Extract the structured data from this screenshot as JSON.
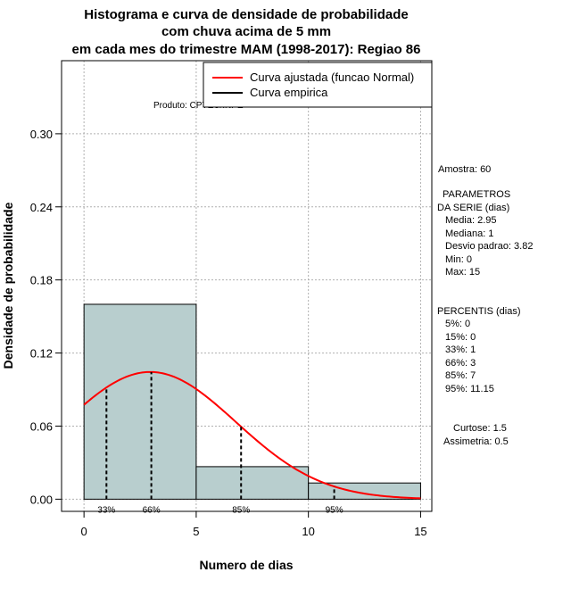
{
  "chart_data": {
    "type": "histogram",
    "title_lines": [
      "Histograma e curva de densidade de probabilidade",
      "com chuva acima de 5 mm",
      "em cada mes do trimestre MAM (1998-2017): Regiao 86"
    ],
    "xlabel": "Numero de dias",
    "ylabel": "Densidade de probabilidade",
    "xlim": [
      -1,
      15.5
    ],
    "ylim": [
      -0.01,
      0.36
    ],
    "x_ticks": [
      0,
      5,
      10,
      15
    ],
    "y_ticks": [
      0.0,
      0.06,
      0.12,
      0.18,
      0.24,
      0.3
    ],
    "y_tick_labels": [
      "0.00",
      "0.06",
      "0.12",
      "0.18",
      "0.24",
      "0.30"
    ],
    "bins": [
      {
        "start": 0,
        "end": 5,
        "density": 0.16
      },
      {
        "start": 5,
        "end": 10,
        "density": 0.0267
      },
      {
        "start": 10,
        "end": 15,
        "density": 0.0133
      }
    ],
    "bar_color": "#b8cece",
    "fit_curve": {
      "distribution": "normal",
      "mean": 2.95,
      "sd": 3.82,
      "color": "#ff0000"
    },
    "percentile_markers": [
      {
        "x": 1,
        "label": "33%"
      },
      {
        "x": 3,
        "label": "66%"
      },
      {
        "x": 7,
        "label": "85%"
      },
      {
        "x": 11.15,
        "label": "95%"
      }
    ],
    "legend": [
      {
        "label": "Curva ajustada (funcao Normal)",
        "color": "#ff0000"
      },
      {
        "label": "Curva empirica",
        "color": "#000000"
      }
    ],
    "product_label": "Produto: CPTEC/INPE",
    "stats": {
      "amostra": "Amostra: 60",
      "parametros_title_1": "PARAMETROS",
      "parametros_title_2": "DA SERIE (dias)",
      "parametros": [
        "Media: 2.95",
        "Mediana: 1",
        "Desvio padrao: 3.82",
        "Min: 0",
        "Max: 15"
      ],
      "percentis_title": "PERCENTIS (dias)",
      "percentis": [
        "5%: 0",
        "15%: 0",
        "33%: 1",
        "66%: 3",
        "85%: 7",
        "95%: 11.15"
      ],
      "curtose": "Curtose: 1.5",
      "assimetria": "Assimetria: 0.5"
    }
  }
}
